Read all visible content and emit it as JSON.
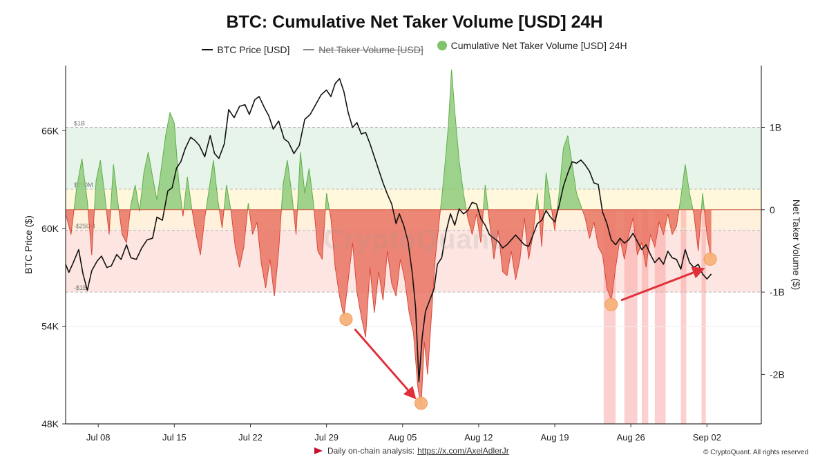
{
  "chart_data": {
    "type": "line",
    "title": "BTC: Cumulative Net Taker Volume [USD] 24H",
    "legend": [
      {
        "name": "BTC Price [USD]",
        "style": "line",
        "color": "#111111"
      },
      {
        "name": "Net Taker Volume [USD]",
        "style": "line-hidden",
        "color": "#888888"
      },
      {
        "name": "Cumulative Net Taker Volume [USD] 24H",
        "style": "dot",
        "color": "#7dc46b"
      }
    ],
    "ylabel_left": "BTC Price ($)",
    "ylabel_right": "Net Taker Volume ($)",
    "ylim_left": [
      48000,
      70000
    ],
    "ylim_right": [
      -2.6,
      1.75
    ],
    "yticks_left": [
      {
        "value": 48000,
        "label": "48K"
      },
      {
        "value": 54000,
        "label": "54K"
      },
      {
        "value": 60000,
        "label": "60K"
      },
      {
        "value": 66000,
        "label": "66K"
      }
    ],
    "yticks_right": [
      {
        "value": 1,
        "label": "1B"
      },
      {
        "value": 0,
        "label": "0"
      },
      {
        "value": -1,
        "label": "-1B"
      },
      {
        "value": -2,
        "label": "-2B"
      }
    ],
    "x_start": "2024-07-05",
    "x_end": "2024-09-07",
    "xticks": [
      {
        "date": "2024-07-08",
        "label": "Jul 08"
      },
      {
        "date": "2024-07-15",
        "label": "Jul 15"
      },
      {
        "date": "2024-07-22",
        "label": "Jul 22"
      },
      {
        "date": "2024-07-29",
        "label": "Jul 29"
      },
      {
        "date": "2024-08-05",
        "label": "Aug 05"
      },
      {
        "date": "2024-08-12",
        "label": "Aug 12"
      },
      {
        "date": "2024-08-19",
        "label": "Aug 19"
      },
      {
        "date": "2024-08-26",
        "label": "Aug 26"
      },
      {
        "date": "2024-09-02",
        "label": "Sep 02"
      }
    ],
    "bands": [
      {
        "from": 0.25,
        "to": 1,
        "color": "#e6f4e9"
      },
      {
        "from": 0,
        "to": 0.25,
        "color": "#fff8dd"
      },
      {
        "from": -0.25,
        "to": 0,
        "color": "#fff1dc"
      },
      {
        "from": -1,
        "to": -0.25,
        "color": "#fde5e1"
      }
    ],
    "threshold_lines": [
      {
        "value": 1,
        "label": "$1B"
      },
      {
        "value": 0.25,
        "label": "$250M"
      },
      {
        "value": -0.25,
        "label": "-$250M"
      },
      {
        "value": -1,
        "label": "-$1B"
      }
    ],
    "highlight_spans": [
      {
        "from": 54.5,
        "to": 55.6
      },
      {
        "from": 56.4,
        "to": 57.6
      },
      {
        "from": 58.0,
        "to": 58.6
      },
      {
        "from": 59.2,
        "to": 60.2
      },
      {
        "from": 61.6,
        "to": 62.1
      },
      {
        "from": 63.5,
        "to": 63.9
      }
    ],
    "price_series": [
      [
        5.0,
        57800
      ],
      [
        5.3,
        57300
      ],
      [
        5.7,
        57900
      ],
      [
        6.2,
        58700
      ],
      [
        6.6,
        57200
      ],
      [
        7.0,
        56200
      ],
      [
        7.4,
        57400
      ],
      [
        7.9,
        58000
      ],
      [
        8.3,
        58300
      ],
      [
        8.8,
        57600
      ],
      [
        9.2,
        57700
      ],
      [
        9.7,
        58400
      ],
      [
        10.1,
        58100
      ],
      [
        10.6,
        59000
      ],
      [
        11.0,
        58200
      ],
      [
        11.5,
        58100
      ],
      [
        12.0,
        58800
      ],
      [
        12.5,
        59300
      ],
      [
        13.0,
        59400
      ],
      [
        13.4,
        60700
      ],
      [
        13.9,
        60500
      ],
      [
        14.4,
        62300
      ],
      [
        14.8,
        62500
      ],
      [
        15.2,
        63700
      ],
      [
        15.6,
        64100
      ],
      [
        16.0,
        64900
      ],
      [
        16.5,
        65600
      ],
      [
        16.9,
        65400
      ],
      [
        17.3,
        65100
      ],
      [
        17.8,
        64400
      ],
      [
        18.3,
        65700
      ],
      [
        18.7,
        64600
      ],
      [
        19.1,
        64300
      ],
      [
        19.6,
        65200
      ],
      [
        20.0,
        67300
      ],
      [
        20.5,
        66800
      ],
      [
        21.0,
        67500
      ],
      [
        21.5,
        67600
      ],
      [
        21.9,
        67000
      ],
      [
        22.4,
        67900
      ],
      [
        22.8,
        68100
      ],
      [
        23.3,
        67400
      ],
      [
        23.7,
        66900
      ],
      [
        24.1,
        66100
      ],
      [
        24.6,
        66600
      ],
      [
        25.1,
        65500
      ],
      [
        25.5,
        65300
      ],
      [
        26.0,
        64600
      ],
      [
        26.5,
        65100
      ],
      [
        27.0,
        66700
      ],
      [
        27.5,
        67000
      ],
      [
        28.0,
        67600
      ],
      [
        28.5,
        68200
      ],
      [
        29.0,
        68500
      ],
      [
        29.4,
        68100
      ],
      [
        29.8,
        68900
      ],
      [
        30.2,
        69200
      ],
      [
        30.6,
        68400
      ],
      [
        31.0,
        67100
      ],
      [
        31.4,
        66200
      ],
      [
        31.8,
        66500
      ],
      [
        32.2,
        65800
      ],
      [
        32.6,
        65900
      ],
      [
        33.0,
        65200
      ],
      [
        33.4,
        64400
      ],
      [
        33.8,
        63600
      ],
      [
        34.2,
        62800
      ],
      [
        34.6,
        62100
      ],
      [
        35.0,
        61500
      ],
      [
        35.4,
        60300
      ],
      [
        35.7,
        60900
      ],
      [
        36.1,
        60200
      ],
      [
        36.5,
        59200
      ],
      [
        36.9,
        57200
      ],
      [
        37.2,
        55100
      ],
      [
        37.5,
        50600
      ],
      [
        37.8,
        53300
      ],
      [
        38.1,
        54900
      ],
      [
        38.5,
        55600
      ],
      [
        38.9,
        56300
      ],
      [
        39.2,
        57800
      ],
      [
        39.6,
        58200
      ],
      [
        40.0,
        59800
      ],
      [
        40.4,
        60900
      ],
      [
        40.8,
        60200
      ],
      [
        41.2,
        61200
      ],
      [
        41.6,
        60900
      ],
      [
        42.0,
        61100
      ],
      [
        42.4,
        61600
      ],
      [
        42.8,
        61500
      ],
      [
        43.2,
        60600
      ],
      [
        43.6,
        60200
      ],
      [
        44.0,
        59600
      ],
      [
        44.4,
        59400
      ],
      [
        44.8,
        59200
      ],
      [
        45.2,
        58800
      ],
      [
        45.6,
        59000
      ],
      [
        46.0,
        59300
      ],
      [
        46.4,
        59600
      ],
      [
        46.8,
        59300
      ],
      [
        47.2,
        59000
      ],
      [
        47.6,
        58900
      ],
      [
        48.0,
        59600
      ],
      [
        48.4,
        60300
      ],
      [
        48.8,
        60500
      ],
      [
        49.2,
        61100
      ],
      [
        49.6,
        60700
      ],
      [
        50.0,
        60400
      ],
      [
        50.4,
        61400
      ],
      [
        50.8,
        62600
      ],
      [
        51.2,
        63400
      ],
      [
        51.6,
        64100
      ],
      [
        52.0,
        64000
      ],
      [
        52.4,
        64200
      ],
      [
        52.8,
        63900
      ],
      [
        53.2,
        63500
      ],
      [
        53.6,
        62800
      ],
      [
        54.0,
        62700
      ],
      [
        54.4,
        61000
      ],
      [
        54.8,
        60300
      ],
      [
        55.2,
        59300
      ],
      [
        55.6,
        59000
      ],
      [
        56.0,
        59400
      ],
      [
        56.4,
        59100
      ],
      [
        56.8,
        59300
      ],
      [
        57.2,
        59700
      ],
      [
        57.6,
        59200
      ],
      [
        58.0,
        58700
      ],
      [
        58.4,
        59000
      ],
      [
        58.8,
        58400
      ],
      [
        59.2,
        57900
      ],
      [
        59.6,
        58200
      ],
      [
        60.0,
        57800
      ],
      [
        60.4,
        58600
      ],
      [
        60.8,
        58200
      ],
      [
        61.2,
        58100
      ],
      [
        61.6,
        57500
      ],
      [
        62.0,
        58700
      ],
      [
        62.4,
        57900
      ],
      [
        62.8,
        57600
      ],
      [
        63.2,
        57800
      ],
      [
        63.6,
        57200
      ],
      [
        64.0,
        56900
      ],
      [
        64.4,
        57200
      ]
    ],
    "cum_series": [
      [
        5.0,
        -0.05
      ],
      [
        5.5,
        -0.3
      ],
      [
        6.0,
        0.25
      ],
      [
        6.5,
        0.62
      ],
      [
        7.0,
        0.1
      ],
      [
        7.4,
        -0.55
      ],
      [
        7.8,
        0.35
      ],
      [
        8.2,
        0.6
      ],
      [
        8.6,
        0.18
      ],
      [
        9.0,
        -0.3
      ],
      [
        9.4,
        0.55
      ],
      [
        9.8,
        0.1
      ],
      [
        10.2,
        -0.3
      ],
      [
        10.6,
        -0.4
      ],
      [
        11.0,
        0.06
      ],
      [
        11.4,
        0.3
      ],
      [
        11.8,
        -0.02
      ],
      [
        12.2,
        0.45
      ],
      [
        12.6,
        0.7
      ],
      [
        13.0,
        0.4
      ],
      [
        13.4,
        0.12
      ],
      [
        13.8,
        0.5
      ],
      [
        14.2,
        0.9
      ],
      [
        14.6,
        1.18
      ],
      [
        15.0,
        1.05
      ],
      [
        15.4,
        0.35
      ],
      [
        15.8,
        -0.08
      ],
      [
        16.2,
        0.4
      ],
      [
        16.6,
        0.02
      ],
      [
        17.0,
        -0.3
      ],
      [
        17.4,
        -0.55
      ],
      [
        17.8,
        -0.1
      ],
      [
        18.2,
        0.25
      ],
      [
        18.6,
        0.6
      ],
      [
        19.0,
        0.12
      ],
      [
        19.4,
        -0.22
      ],
      [
        19.8,
        0.3
      ],
      [
        20.2,
        0.0
      ],
      [
        20.6,
        -0.45
      ],
      [
        21.0,
        -0.7
      ],
      [
        21.4,
        -0.45
      ],
      [
        21.8,
        0.08
      ],
      [
        22.2,
        -0.3
      ],
      [
        22.6,
        -0.15
      ],
      [
        23.0,
        -0.65
      ],
      [
        23.4,
        -0.95
      ],
      [
        23.8,
        -0.6
      ],
      [
        24.2,
        -1.05
      ],
      [
        24.6,
        -0.5
      ],
      [
        25.0,
        0.3
      ],
      [
        25.4,
        0.6
      ],
      [
        25.8,
        0.2
      ],
      [
        26.2,
        -0.3
      ],
      [
        26.6,
        0.7
      ],
      [
        27.0,
        0.2
      ],
      [
        27.4,
        0.5
      ],
      [
        27.8,
        0.08
      ],
      [
        28.2,
        -0.5
      ],
      [
        28.6,
        -0.6
      ],
      [
        29.0,
        0.2
      ],
      [
        29.4,
        -0.1
      ],
      [
        29.8,
        -0.7
      ],
      [
        30.2,
        -1.05
      ],
      [
        30.6,
        -1.3
      ],
      [
        31.0,
        -0.85
      ],
      [
        31.4,
        -0.4
      ],
      [
        31.8,
        -1.0
      ],
      [
        32.2,
        -1.3
      ],
      [
        32.6,
        -1.55
      ],
      [
        33.0,
        -0.7
      ],
      [
        33.4,
        -1.25
      ],
      [
        33.8,
        -0.75
      ],
      [
        34.2,
        -1.1
      ],
      [
        34.6,
        -0.5
      ],
      [
        35.0,
        -0.9
      ],
      [
        35.4,
        -1.05
      ],
      [
        35.8,
        -0.6
      ],
      [
        36.2,
        -0.85
      ],
      [
        36.6,
        -1.25
      ],
      [
        37.0,
        -1.5
      ],
      [
        37.4,
        -2.15
      ],
      [
        37.7,
        -2.4
      ],
      [
        38.0,
        -1.6
      ],
      [
        38.3,
        -2.0
      ],
      [
        38.6,
        -1.4
      ],
      [
        39.0,
        -0.6
      ],
      [
        39.4,
        -0.1
      ],
      [
        39.8,
        0.4
      ],
      [
        40.2,
        1.0
      ],
      [
        40.5,
        1.7
      ],
      [
        40.8,
        1.2
      ],
      [
        41.2,
        0.6
      ],
      [
        41.6,
        0.2
      ],
      [
        42.0,
        -0.1
      ],
      [
        42.4,
        -0.3
      ],
      [
        42.8,
        -0.05
      ],
      [
        43.2,
        -0.4
      ],
      [
        43.6,
        0.3
      ],
      [
        44.0,
        -0.15
      ],
      [
        44.4,
        -0.6
      ],
      [
        44.8,
        -0.25
      ],
      [
        45.2,
        -0.75
      ],
      [
        45.6,
        -0.8
      ],
      [
        46.0,
        -0.5
      ],
      [
        46.4,
        -0.85
      ],
      [
        46.8,
        -0.6
      ],
      [
        47.2,
        -0.1
      ],
      [
        47.6,
        -0.6
      ],
      [
        48.0,
        -0.3
      ],
      [
        48.4,
        0.2
      ],
      [
        48.8,
        -0.45
      ],
      [
        49.2,
        0.45
      ],
      [
        49.6,
        0.1
      ],
      [
        50.0,
        -0.25
      ],
      [
        50.4,
        0.2
      ],
      [
        50.8,
        0.75
      ],
      [
        51.2,
        0.9
      ],
      [
        51.6,
        0.55
      ],
      [
        52.0,
        0.2
      ],
      [
        52.4,
        0.05
      ],
      [
        52.8,
        -0.1
      ],
      [
        53.2,
        -0.35
      ],
      [
        53.6,
        -0.15
      ],
      [
        54.0,
        -0.45
      ],
      [
        54.4,
        -0.55
      ],
      [
        54.8,
        -0.95
      ],
      [
        55.2,
        -1.1
      ],
      [
        55.6,
        -0.7
      ],
      [
        56.0,
        -0.35
      ],
      [
        56.4,
        -0.6
      ],
      [
        56.8,
        -0.3
      ],
      [
        57.2,
        -0.1
      ],
      [
        57.6,
        -0.55
      ],
      [
        58.0,
        -0.4
      ],
      [
        58.4,
        -0.7
      ],
      [
        58.8,
        -0.3
      ],
      [
        59.2,
        -0.45
      ],
      [
        59.6,
        -0.15
      ],
      [
        60.0,
        -0.3
      ],
      [
        60.4,
        -0.05
      ],
      [
        60.8,
        -0.3
      ],
      [
        61.2,
        -0.2
      ],
      [
        61.6,
        0.15
      ],
      [
        62.0,
        0.55
      ],
      [
        62.4,
        0.2
      ],
      [
        62.8,
        -0.05
      ],
      [
        63.2,
        -0.5
      ],
      [
        63.6,
        0.2
      ],
      [
        64.0,
        -0.3
      ],
      [
        64.4,
        -0.6
      ]
    ],
    "markers": [
      {
        "x": 30.8,
        "y": -1.33
      },
      {
        "x": 37.7,
        "y": -2.35
      },
      {
        "x": 55.2,
        "y": -1.15
      },
      {
        "x": 64.3,
        "y": -0.6
      }
    ],
    "arrows": [
      {
        "from": [
          31.6,
          -1.45
        ],
        "to": [
          37.1,
          -2.28
        ]
      },
      {
        "from": [
          56.1,
          -1.1
        ],
        "to": [
          63.6,
          -0.72
        ]
      }
    ]
  },
  "footer": {
    "text": "Daily on-chain analysis:",
    "link": "https://x.com/AxelAdlerJr",
    "copyright": "© CryptoQuant. All rights reserved"
  },
  "watermark": "CryptoQuant"
}
